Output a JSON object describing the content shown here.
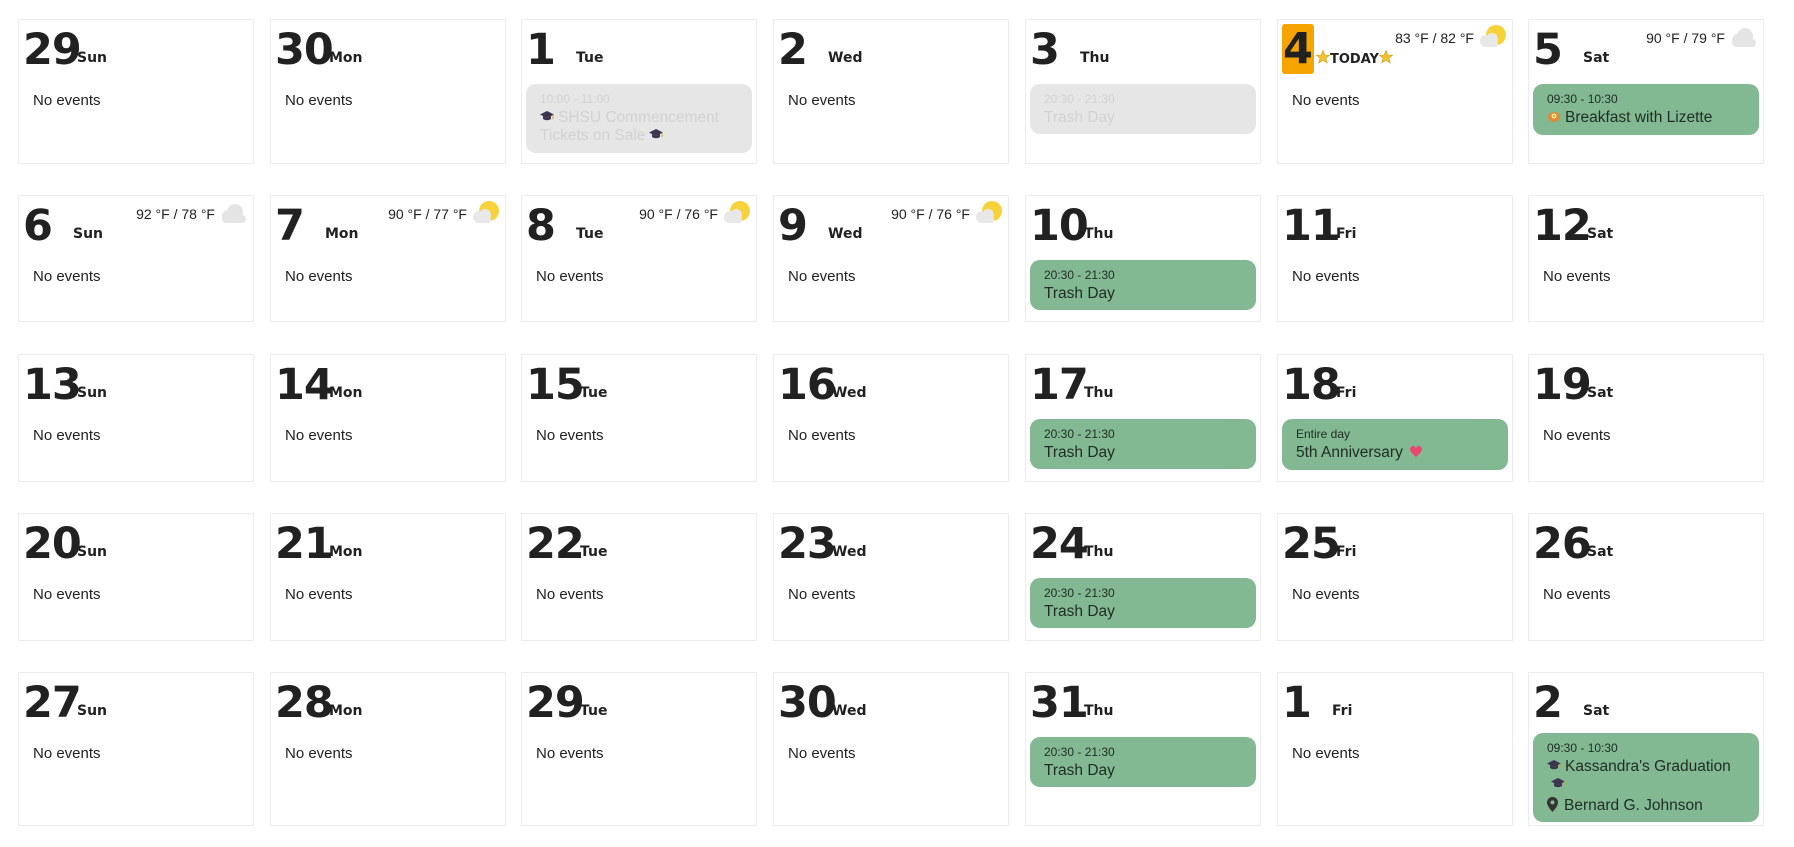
{
  "calendar": {
    "no_events": "No events",
    "colors": {
      "event_bg": "#82b892",
      "past_event_bg": "#e6e6e6",
      "today_bg": "#f6a500"
    },
    "days": [
      {
        "num": "29",
        "name": "Sun",
        "no_events": "No events"
      },
      {
        "num": "30",
        "name": "Mon",
        "no_events": "No events"
      },
      {
        "num": "1",
        "name": "Tue",
        "event": {
          "time": "10:00 - 11:00",
          "title": "SHSU Commencement Tickets on Sale",
          "icon": "graduation-cap-icon",
          "past": true
        }
      },
      {
        "num": "2",
        "name": "Wed",
        "no_events": "No events"
      },
      {
        "num": "3",
        "name": "Thu",
        "event": {
          "time": "20:30 - 21:30",
          "title": "Trash Day",
          "past": true
        }
      },
      {
        "num": "4",
        "today_label": "TODAY",
        "today_icon": "star-icon",
        "weather": {
          "text": "83 °F / 82 °F",
          "icon": "partly-sunny-icon"
        },
        "no_events": "No events"
      },
      {
        "num": "5",
        "name": "Sat",
        "weather": {
          "text": "90 °F / 79 °F",
          "icon": "cloud-icon"
        },
        "event": {
          "time": "09:30 - 10:30",
          "title": "Breakfast with Lizette",
          "icon": "breakfast-icon"
        }
      },
      {
        "num": "6",
        "name": "Sun",
        "weather": {
          "text": "92 °F / 78 °F",
          "icon": "cloud-icon"
        },
        "no_events": "No events"
      },
      {
        "num": "7",
        "name": "Mon",
        "weather": {
          "text": "90 °F / 77 °F",
          "icon": "partly-sunny-icon"
        },
        "no_events": "No events"
      },
      {
        "num": "8",
        "name": "Tue",
        "weather": {
          "text": "90 °F / 76 °F",
          "icon": "partly-sunny-icon"
        },
        "no_events": "No events"
      },
      {
        "num": "9",
        "name": "Wed",
        "weather": {
          "text": "90 °F / 76 °F",
          "icon": "partly-sunny-icon"
        },
        "no_events": "No events"
      },
      {
        "num": "10",
        "name": "Thu",
        "event": {
          "time": "20:30 - 21:30",
          "title": "Trash Day"
        }
      },
      {
        "num": "11",
        "name": "Fri",
        "no_events": "No events"
      },
      {
        "num": "12",
        "name": "Sat",
        "no_events": "No events"
      },
      {
        "num": "13",
        "name": "Sun",
        "no_events": "No events"
      },
      {
        "num": "14",
        "name": "Mon",
        "no_events": "No events"
      },
      {
        "num": "15",
        "name": "Tue",
        "no_events": "No events"
      },
      {
        "num": "16",
        "name": "Wed",
        "no_events": "No events"
      },
      {
        "num": "17",
        "name": "Thu",
        "event": {
          "time": "20:30 - 21:30",
          "title": "Trash Day"
        }
      },
      {
        "num": "18",
        "name": "Fri",
        "event": {
          "time": "Entire day",
          "title": "5th Anniversary",
          "icon": "heart-icon"
        }
      },
      {
        "num": "19",
        "name": "Sat",
        "no_events": "No events"
      },
      {
        "num": "20",
        "name": "Sun",
        "no_events": "No events"
      },
      {
        "num": "21",
        "name": "Mon",
        "no_events": "No events"
      },
      {
        "num": "22",
        "name": "Tue",
        "no_events": "No events"
      },
      {
        "num": "23",
        "name": "Wed",
        "no_events": "No events"
      },
      {
        "num": "24",
        "name": "Thu",
        "event": {
          "time": "20:30 - 21:30",
          "title": "Trash Day"
        }
      },
      {
        "num": "25",
        "name": "Fri",
        "no_events": "No events"
      },
      {
        "num": "26",
        "name": "Sat",
        "no_events": "No events"
      },
      {
        "num": "27",
        "name": "Sun",
        "no_events": "No events"
      },
      {
        "num": "28",
        "name": "Mon",
        "no_events": "No events"
      },
      {
        "num": "29",
        "name": "Tue",
        "no_events": "No events"
      },
      {
        "num": "30",
        "name": "Wed",
        "no_events": "No events"
      },
      {
        "num": "31",
        "name": "Thu",
        "event": {
          "time": "20:30 - 21:30",
          "title": "Trash Day"
        }
      },
      {
        "num": "1",
        "name": "Fri",
        "no_events": "No events"
      },
      {
        "num": "2",
        "name": "Sat",
        "event": {
          "time": "09:30 - 10:30",
          "title": "Kassandra's Graduation",
          "icon": "graduation-cap-icon",
          "location": "Bernard G. Johnson",
          "location_icon": "map-pin-icon"
        }
      }
    ]
  }
}
